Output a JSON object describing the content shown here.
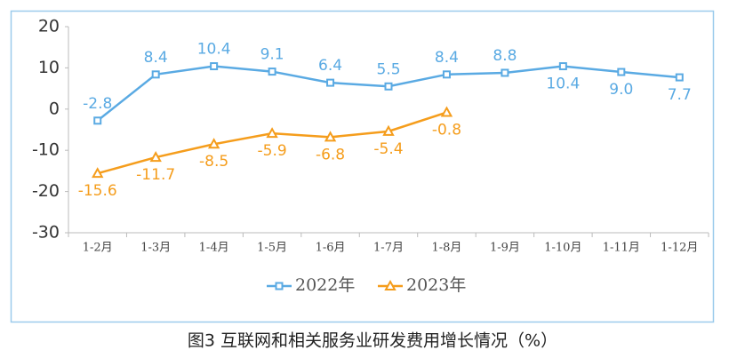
{
  "chart_data": {
    "type": "line",
    "title": "图3  互联网和相关服务业研发费用增长情况（%）",
    "categories": [
      "1-2月",
      "1-3月",
      "1-4月",
      "1-5月",
      "1-6月",
      "1-7月",
      "1-8月",
      "1-9月",
      "1-10月",
      "1-11月",
      "1-12月"
    ],
    "series": [
      {
        "name": "2022年",
        "color": "#5aaae3",
        "marker": "square",
        "values": [
          -2.8,
          8.4,
          10.4,
          9.1,
          6.4,
          5.5,
          8.4,
          8.8,
          10.4,
          9.0,
          7.7
        ],
        "value_labels": [
          "-2.8",
          "8.4",
          "10.4",
          "9.1",
          "6.4",
          "5.5",
          "8.4",
          "8.8",
          "10.4",
          "9.0",
          "7.7"
        ]
      },
      {
        "name": "2023年",
        "color": "#f59d1c",
        "marker": "triangle",
        "values": [
          -15.6,
          -11.7,
          -8.5,
          -5.9,
          -6.8,
          -5.4,
          -0.8,
          null,
          null,
          null,
          null
        ]
      }
    ],
    "ylim": [
      -30,
      20
    ],
    "yticks": [
      -30,
      -20,
      -10,
      0,
      10,
      20
    ],
    "grid": false,
    "legend": "bottom"
  }
}
